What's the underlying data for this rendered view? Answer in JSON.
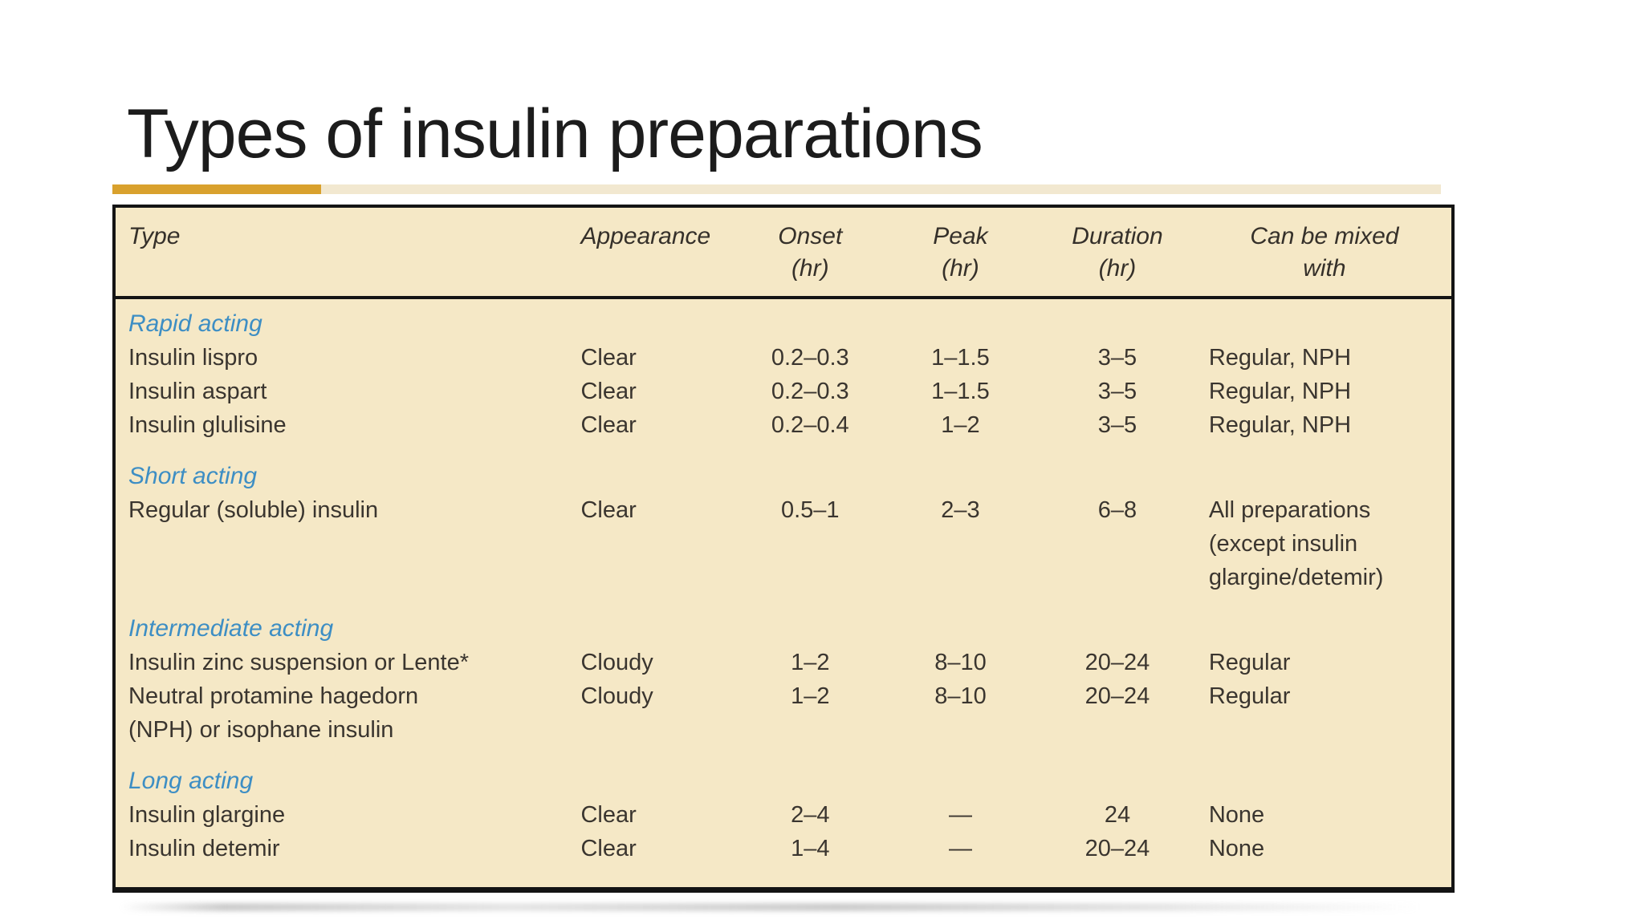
{
  "slide": {
    "title": "Types of insulin preparations"
  },
  "accents": {
    "gold_bar": "#D9A12D",
    "pale_rule": "#F2E8D0",
    "table_background": "#F5E8C6",
    "table_border": "#141414",
    "section_heading_blue": "#3D8EC4",
    "body_text": "#3A352F"
  },
  "table": {
    "columns": [
      {
        "label": "Type"
      },
      {
        "label": "Appearance"
      },
      {
        "label": "Onset",
        "sub": "(hr)"
      },
      {
        "label": "Peak",
        "sub": "(hr)"
      },
      {
        "label": "Duration",
        "sub": "(hr)"
      },
      {
        "label": "Can be mixed",
        "sub": "with"
      }
    ],
    "sections": [
      {
        "name": "Rapid acting",
        "rows": [
          {
            "cells": [
              "Insulin lispro",
              "Clear",
              "0.2–0.3",
              "1–1.5",
              "3–5",
              "Regular, NPH"
            ]
          },
          {
            "cells": [
              "Insulin aspart",
              "Clear",
              "0.2–0.3",
              "1–1.5",
              "3–5",
              "Regular, NPH"
            ]
          },
          {
            "cells": [
              "Insulin glulisine",
              "Clear",
              "0.2–0.4",
              "1–2",
              "3–5",
              "Regular, NPH"
            ]
          }
        ]
      },
      {
        "name": "Short acting",
        "rows": [
          {
            "cells": [
              "Regular (soluble) insulin",
              "Clear",
              "0.5–1",
              "2–3",
              "6–8",
              "All preparations\n(except insulin\nglargine/detemir)"
            ]
          }
        ]
      },
      {
        "name": "Intermediate acting",
        "rows": [
          {
            "cells": [
              "Insulin zinc suspension or Lente*",
              "Cloudy",
              "1–2",
              "8–10",
              "20–24",
              "Regular"
            ]
          },
          {
            "cells": [
              "Neutral protamine hagedorn\n(NPH) or isophane insulin",
              "Cloudy",
              "1–2",
              "8–10",
              "20–24",
              "Regular"
            ]
          }
        ]
      },
      {
        "name": "Long acting",
        "spaced": true,
        "rows": [
          {
            "cells": [
              "Insulin glargine",
              "Clear",
              "2–4",
              "—",
              "24",
              "None"
            ]
          },
          {
            "cells": [
              "Insulin detemir",
              "Clear",
              "1–4",
              "—",
              "20–24",
              "None"
            ]
          }
        ]
      }
    ]
  }
}
